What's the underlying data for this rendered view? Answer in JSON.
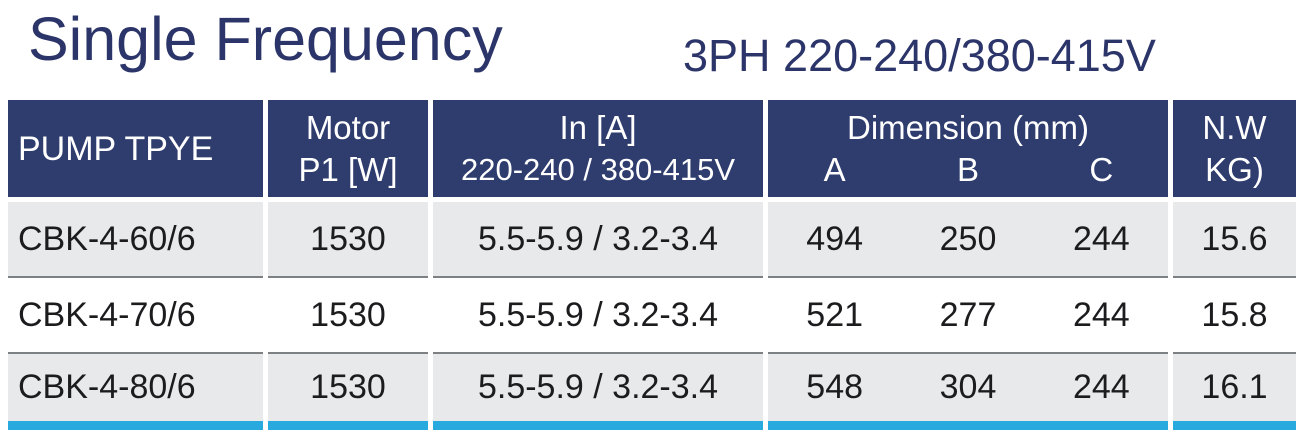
{
  "title": "Single Frequency",
  "subtitle": "3PH  220-240/380-415V",
  "colors": {
    "header_bg": "#2e3c6e",
    "title_text": "#2c3569",
    "row_alt_bg": "#e8e9eb",
    "row_separator": "#7e8184",
    "bottom_bar": "#29aadf",
    "header_text": "#ffffff",
    "cell_text": "#1c1c1e"
  },
  "table": {
    "headers": {
      "pump_type": "PUMP TPYE",
      "motor_line1": "Motor",
      "motor_line2": "P1 [W]",
      "in_line1": "In [A]",
      "in_line2": "220-240 / 380-415V",
      "dimension": "Dimension (mm)",
      "dim_a": "A",
      "dim_b": "B",
      "dim_c": "C",
      "nw_line1": "N.W",
      "nw_line2": "KG)"
    },
    "rows": [
      {
        "pump": "CBK-4-60/6",
        "motor": "1530",
        "in_a": "5.5-5.9 / 3.2-3.4",
        "dim_a": "494",
        "dim_b": "250",
        "dim_c": "244",
        "nw": "15.6"
      },
      {
        "pump": "CBK-4-70/6",
        "motor": "1530",
        "in_a": "5.5-5.9 / 3.2-3.4",
        "dim_a": "521",
        "dim_b": "277",
        "dim_c": "244",
        "nw": "15.8"
      },
      {
        "pump": "CBK-4-80/6",
        "motor": "1530",
        "in_a": "5.5-5.9 / 3.2-3.4",
        "dim_a": "548",
        "dim_b": "304",
        "dim_c": "244",
        "nw": "16.1"
      }
    ]
  }
}
